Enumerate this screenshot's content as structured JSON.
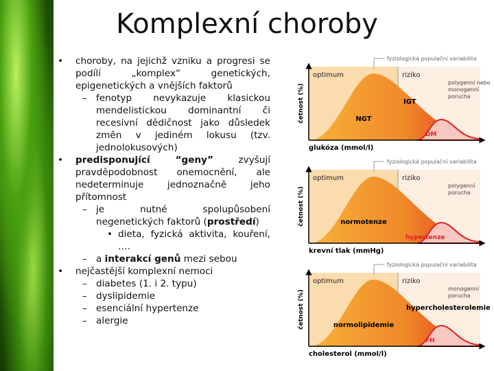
{
  "title": "Komplexní choroby",
  "items": [
    {
      "level": 0,
      "runs": [
        {
          "text": "choroby, na jejichž vzniku a progresi se podílí „komplex“ genetických, epigenetických a vnějších faktorů"
        }
      ]
    },
    {
      "level": 1,
      "runs": [
        {
          "text": "fenotyp nevykazuje klasickou mendelistickou dominantní či recesivní dědičnost jako důsledek změn v jediném lokusu (tzv. jednolokusových)"
        }
      ]
    },
    {
      "level": 0,
      "runs": [
        {
          "text": "predisponující “geny”",
          "bold": true
        },
        {
          "text": " zvyšují pravděpodobnost onemocnění, ale nedeterminuje jednoznačně jeho přítomnost"
        }
      ]
    },
    {
      "level": 1,
      "runs": [
        {
          "text": "je nutné spolupůsobení negenetických faktorů ("
        },
        {
          "text": "prostředí",
          "bold": true
        },
        {
          "text": ")"
        }
      ]
    },
    {
      "level": 2,
      "runs": [
        {
          "text": "dieta, fyzická aktivita, kouření, …."
        }
      ]
    },
    {
      "level": 1,
      "runs": [
        {
          "text": "a "
        },
        {
          "text": "interakcí genů",
          "bold": true
        },
        {
          "text": " mezi sebou"
        }
      ]
    },
    {
      "level": 0,
      "runs": [
        {
          "text": "nejčastější komplexní nemoci"
        }
      ]
    },
    {
      "level": 1,
      "runs": [
        {
          "text": "diabetes (1. i 2. typu)"
        }
      ]
    },
    {
      "level": 1,
      "runs": [
        {
          "text": "dyslipidemie"
        }
      ]
    },
    {
      "level": 1,
      "runs": [
        {
          "text": "esenciální hypertenze"
        }
      ]
    },
    {
      "level": 1,
      "runs": [
        {
          "text": "alergie"
        }
      ]
    }
  ],
  "panels": [
    {
      "top_label": "fyziologická populační variabilita",
      "left_label": "optimum",
      "right_label": "riziko",
      "y_label": "četnost (%)",
      "x_label": "glukóza (mmol/l)",
      "main": "NGT",
      "risk_zone": "IGT",
      "disorder": "DM",
      "note": "polygenní nebo monogenní porucha"
    },
    {
      "top_label": "fyziologická populační variabilita",
      "left_label": "optimum",
      "right_label": "riziko",
      "y_label": "četnost (%)",
      "x_label": "krevní tlak (mmHg)",
      "main": "normotenze",
      "disorder": "hypertenze",
      "note": "polygenní porucha"
    },
    {
      "top_label": "fyziologická populační variabilita",
      "left_label": "optimum",
      "right_label": "riziko",
      "y_label": "četnost (%)",
      "x_label": "cholesterol (mmol/l)",
      "main": "normolipidemie",
      "risk_zone": "hypercholesterolemie",
      "disorder": "FH",
      "note": "monogenní porucha"
    }
  ]
}
